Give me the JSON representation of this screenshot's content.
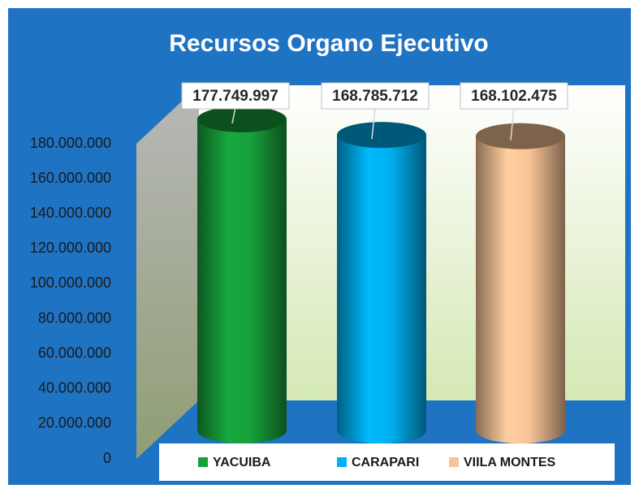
{
  "chart_data": {
    "type": "cylinder_bar",
    "title": "Recursos Organo Ejecutivo",
    "categories": [
      "YACUIBA",
      "CARAPARI",
      "VIILA MONTES"
    ],
    "values": [
      177749997,
      168785712,
      168102475
    ],
    "value_labels": [
      "177.749.997",
      "168.785.712",
      "168.102.475"
    ],
    "colors": [
      "#17a03c",
      "#00b0f0",
      "#f9c497"
    ],
    "ylim": [
      0,
      180000000
    ],
    "yticks": [
      0,
      {
        "value": 20000000,
        "label": "20.000.000"
      },
      {
        "value": 40000000,
        "label": "40.000.000"
      },
      {
        "value": 60000000,
        "label": "60.000.000"
      },
      {
        "value": 80000000,
        "label": "80.000.000"
      },
      {
        "value": 100000000,
        "label": "100.000.000"
      },
      {
        "value": 120000000,
        "label": "120.000.000"
      },
      {
        "value": 140000000,
        "label": "140.000.000"
      },
      {
        "value": 160000000,
        "label": "160.000.000"
      },
      {
        "value": 180000000,
        "label": "180.000.000"
      }
    ],
    "legend": "bottom"
  }
}
